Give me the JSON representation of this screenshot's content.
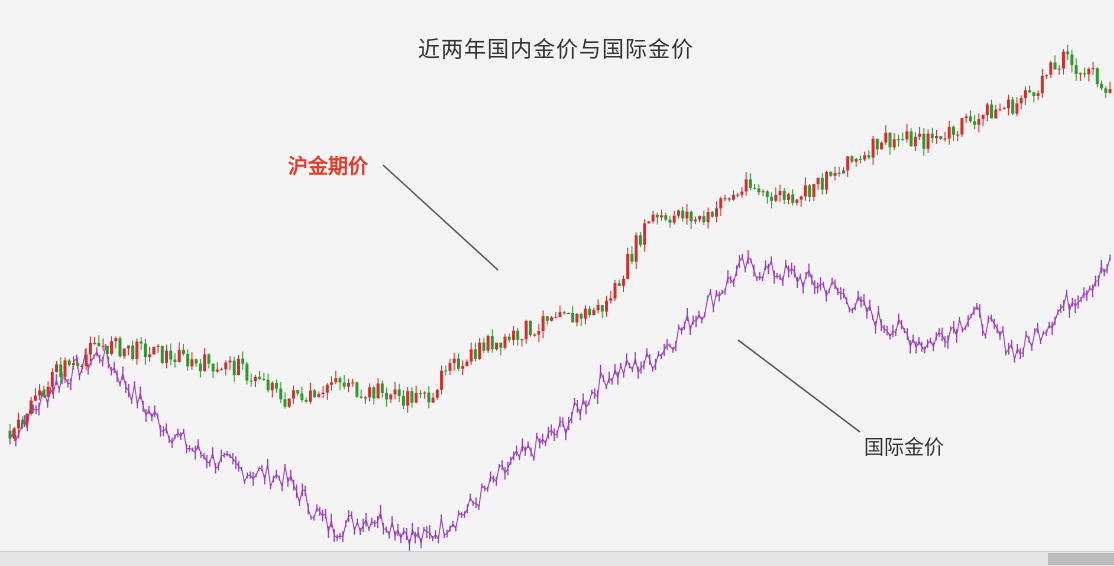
{
  "header": {
    "top_left_label": "",
    "top_right_stats": [
      "",
      ""
    ]
  },
  "annotations": {
    "shfe_label": "沪金期价",
    "intl_label": "国际金价",
    "start_price": ""
  },
  "colors": {
    "up_candle": "#d32f2f",
    "down_candle": "#2e9a2e",
    "intl_line": "#9b3fbf",
    "arrow": "#555555",
    "title_text": "#333333",
    "shfe_label_text": "#e53b2c"
  },
  "chart_data": {
    "type": "line",
    "title": "近两年国内金价与国际金价",
    "xlabel": "",
    "ylabel": "",
    "grid": false,
    "x": [
      0,
      1,
      2,
      3,
      4,
      5,
      6,
      7,
      8,
      9,
      10,
      11,
      12,
      13,
      14,
      15,
      16,
      17,
      18,
      19,
      20,
      21,
      22,
      23,
      24
    ],
    "series": [
      {
        "name": "沪金期价",
        "values": [
          30,
          45,
          52,
          50,
          48,
          46,
          38,
          42,
          40,
          38,
          50,
          55,
          58,
          62,
          86,
          84,
          92,
          90,
          95,
          105,
          104,
          110,
          114,
          125,
          118
        ]
      },
      {
        "name": "国际金价",
        "values": [
          28,
          42,
          50,
          35,
          25,
          20,
          18,
          5,
          8,
          2,
          10,
          22,
          30,
          44,
          48,
          60,
          72,
          70,
          66,
          58,
          52,
          60,
          50,
          62,
          72
        ]
      }
    ],
    "x_tick_labels": [
      "",
      "",
      "",
      "",
      "",
      "",
      "",
      "",
      "",
      "",
      "",
      "",
      "",
      "",
      "",
      "",
      "",
      "",
      "",
      "",
      "",
      "",
      ""
    ],
    "ylim": [
      0,
      130
    ]
  }
}
